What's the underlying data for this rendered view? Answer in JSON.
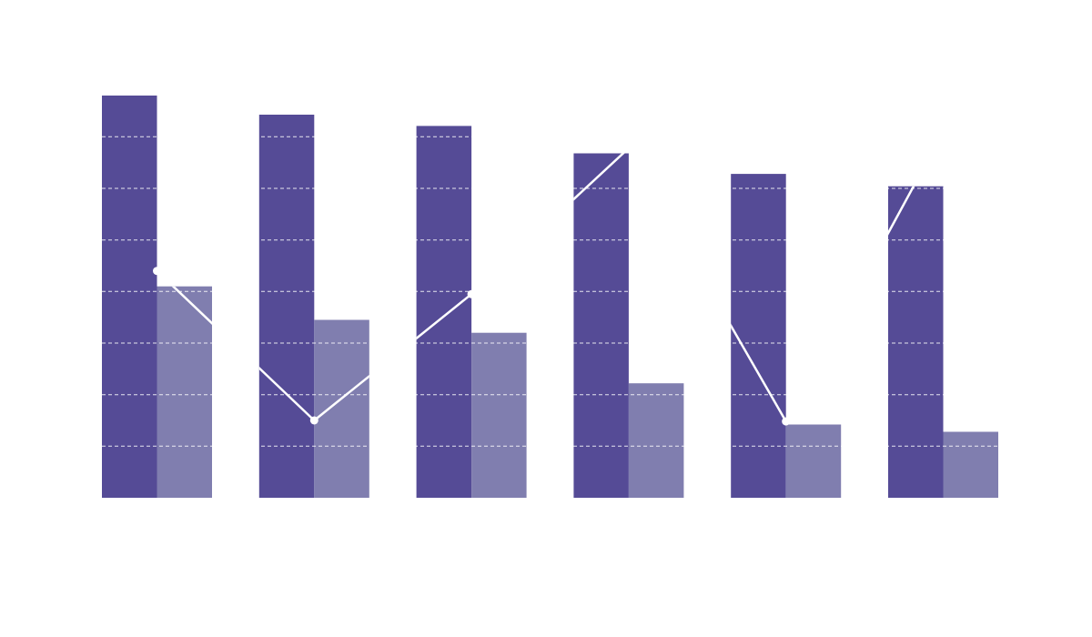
{
  "colors": {
    "background": "#ffffff",
    "series_a": "#554b96",
    "series_b": "#807eaf",
    "line": "#ffffff",
    "grid": "#ffffff"
  },
  "chart_data": {
    "type": "bar",
    "title": "",
    "xlabel": "",
    "ylabel": "",
    "categories": [
      "",
      "",
      "",
      "",
      "",
      ""
    ],
    "ylim": [
      0,
      7.8
    ],
    "grid": true,
    "grid_style": "dashed",
    "grid_values": [
      1,
      2,
      3,
      4,
      5,
      6,
      7
    ],
    "legend": "none",
    "series": [
      {
        "type": "bar",
        "values": [
          7.8,
          7.43,
          7.21,
          6.68,
          6.28,
          6.04
        ]
      },
      {
        "type": "bar",
        "values": [
          4.1,
          3.45,
          3.2,
          2.22,
          1.42,
          1.28
        ]
      },
      {
        "type": "line",
        "values": [
          4.4,
          1.5,
          3.95,
          6.78,
          1.48,
          7.1
        ]
      }
    ]
  }
}
